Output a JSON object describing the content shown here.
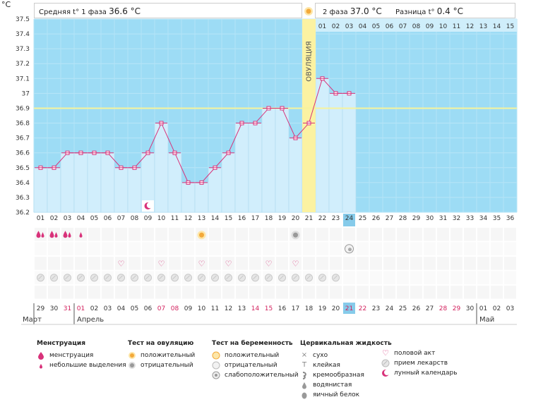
{
  "header": {
    "unit": "°C",
    "phase1_label": "Средняя t° 1 фаза",
    "phase1_value": "36.6 °C",
    "phase2_label": "2 фаза",
    "phase2_value": "37.0 °C",
    "diff_label": "Разница t°",
    "diff_value": "0.4 °C"
  },
  "ovulation_label": "ОВУЛЯЦИЯ",
  "chart_data": {
    "type": "line",
    "y_ticks": [
      "36.2",
      "36.3",
      "36.4",
      "36.5",
      "36.6",
      "36.7",
      "36.8",
      "36.9",
      "37",
      "37.1",
      "37.2",
      "37.3",
      "37.4",
      "37.5"
    ],
    "ylim": [
      36.2,
      37.5
    ],
    "coverline": 36.9,
    "ovulation_day": 21,
    "current_day": 24,
    "cycle_days": [
      "01",
      "02",
      "03",
      "04",
      "05",
      "06",
      "07",
      "08",
      "09",
      "10",
      "11",
      "12",
      "13",
      "14",
      "15",
      "16",
      "17",
      "18",
      "19",
      "20",
      "21",
      "22",
      "23",
      "24",
      "25",
      "26",
      "27",
      "28",
      "29",
      "30",
      "31",
      "32",
      "33",
      "34",
      "35",
      "36"
    ],
    "temperatures": [
      36.5,
      36.5,
      36.6,
      36.6,
      36.6,
      36.6,
      36.5,
      36.5,
      36.6,
      36.8,
      36.6,
      36.4,
      36.4,
      36.5,
      36.6,
      36.8,
      36.8,
      36.9,
      36.9,
      36.7,
      36.8,
      37.1,
      37.0,
      37.0
    ],
    "phase2_days": [
      "01",
      "02",
      "03",
      "04",
      "05",
      "06",
      "07",
      "08",
      "09",
      "10",
      "11",
      "12",
      "13",
      "14",
      "15"
    ],
    "calendar_dates": [
      "29",
      "30",
      "31",
      "01",
      "02",
      "03",
      "04",
      "05",
      "06",
      "07",
      "08",
      "09",
      "10",
      "11",
      "12",
      "13",
      "14",
      "15",
      "16",
      "17",
      "18",
      "19",
      "20",
      "21",
      "22",
      "23",
      "24",
      "25",
      "26",
      "27",
      "28",
      "29",
      "30",
      "01",
      "02",
      "03"
    ],
    "weekend_indexes": [
      2,
      3,
      9,
      10,
      16,
      17,
      23,
      24,
      30,
      31
    ],
    "months": [
      {
        "name": "Март",
        "at": 0
      },
      {
        "name": "Апрель",
        "at": 3
      },
      {
        "name": "Май",
        "at": 33
      }
    ],
    "rows": {
      "menstruation_heavy": [
        1,
        2,
        3
      ],
      "menstruation_light": [
        4
      ],
      "ovulation_positive": [
        13
      ],
      "ovulation_negative": [
        20
      ],
      "pregnancy_weak": [
        24
      ],
      "intercourse": [
        7,
        10,
        13,
        15,
        18,
        20
      ],
      "medication": [
        1,
        2,
        3,
        4,
        5,
        6,
        7,
        8,
        9,
        10,
        11,
        12,
        13,
        14,
        15,
        16,
        17,
        18,
        19,
        20,
        21,
        22,
        23
      ],
      "moon": [
        9
      ]
    }
  },
  "legend": {
    "menstruation": {
      "title": "Менструация",
      "items": [
        "менструация",
        "небольшие выделения"
      ]
    },
    "ovulation_test": {
      "title": "Тест на овуляцию",
      "items": [
        "положительный",
        "отрицательный"
      ]
    },
    "pregnancy_test": {
      "title": "Тест на беременность",
      "items": [
        "положительный",
        "отрицательный",
        "слабоположительный"
      ]
    },
    "cervical": {
      "title": "Цервикальная жидкость",
      "items": [
        "сухо",
        "клейкая",
        "кремообразная",
        "водянистая",
        "яичный белок"
      ]
    },
    "other": {
      "items": [
        "половой акт",
        "прием лекарств",
        "лунный календарь"
      ]
    }
  },
  "colors": {
    "chart_bg": "#9ddcf5",
    "bar": "#d1eefc",
    "bar_edge": "#a8d6ee",
    "line": "#d8327a",
    "coverline": "#f6f39c",
    "ovulation": "#fbf2a2",
    "current": "#86cbea",
    "weekend": "#d21f5c"
  }
}
